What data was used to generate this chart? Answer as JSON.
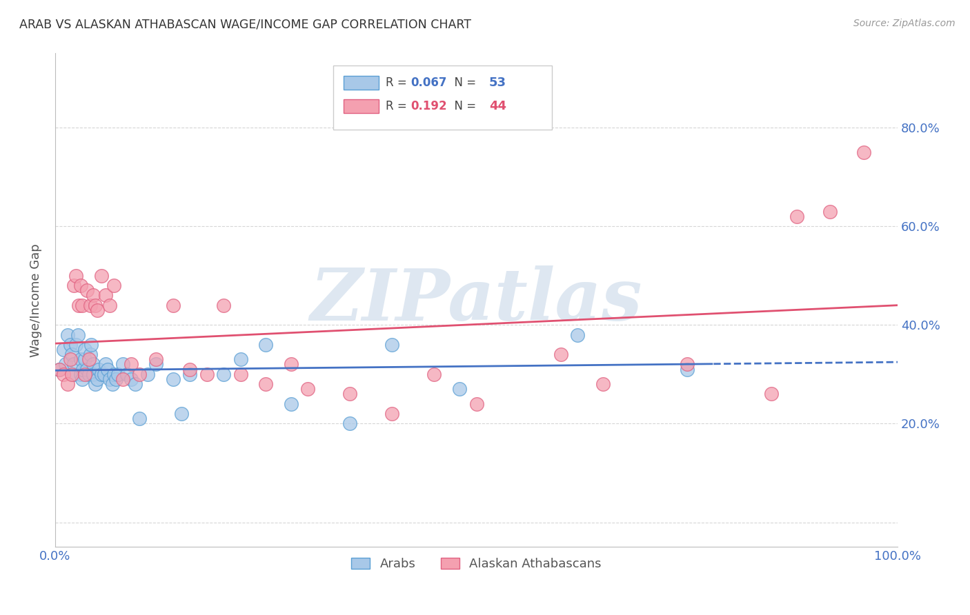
{
  "title": "ARAB VS ALASKAN ATHABASCAN WAGE/INCOME GAP CORRELATION CHART",
  "source": "Source: ZipAtlas.com",
  "ylabel": "Wage/Income Gap",
  "xlim": [
    0.0,
    1.0
  ],
  "ylim": [
    -0.05,
    0.95
  ],
  "yticks": [
    0.0,
    0.2,
    0.4,
    0.6,
    0.8
  ],
  "ytick_labels": [
    "",
    "20.0%",
    "40.0%",
    "60.0%",
    "80.0%"
  ],
  "xticks": [
    0.0,
    0.1,
    0.2,
    0.3,
    0.4,
    0.5,
    0.6,
    0.7,
    0.8,
    0.9,
    1.0
  ],
  "arab_color": "#a8c8e8",
  "athabascan_color": "#f4a0b0",
  "arab_edge_color": "#5a9fd4",
  "athabascan_edge_color": "#e06080",
  "trend_arab_color": "#4472c4",
  "trend_athabascan_color": "#e05070",
  "R_arab": 0.067,
  "N_arab": 53,
  "R_athabascan": 0.192,
  "N_athabascan": 44,
  "legend_label_arab": "Arabs",
  "legend_label_athabascan": "Alaskan Athabascans",
  "watermark": "ZIPatlas",
  "watermark_color": "#c8d8e8",
  "title_color": "#333333",
  "axis_label_color": "#555555",
  "tick_color": "#4472c4",
  "grid_color": "#cccccc",
  "background_color": "#ffffff",
  "arab_x": [
    0.005,
    0.01,
    0.012,
    0.015,
    0.018,
    0.02,
    0.022,
    0.022,
    0.025,
    0.027,
    0.03,
    0.03,
    0.032,
    0.033,
    0.035,
    0.035,
    0.038,
    0.04,
    0.042,
    0.043,
    0.045,
    0.045,
    0.048,
    0.05,
    0.052,
    0.055,
    0.058,
    0.06,
    0.062,
    0.065,
    0.068,
    0.07,
    0.072,
    0.075,
    0.08,
    0.085,
    0.09,
    0.095,
    0.1,
    0.11,
    0.12,
    0.14,
    0.15,
    0.16,
    0.2,
    0.22,
    0.25,
    0.28,
    0.35,
    0.4,
    0.48,
    0.62,
    0.75
  ],
  "arab_y": [
    0.31,
    0.35,
    0.32,
    0.38,
    0.36,
    0.34,
    0.3,
    0.32,
    0.36,
    0.38,
    0.3,
    0.33,
    0.29,
    0.31,
    0.33,
    0.35,
    0.31,
    0.3,
    0.34,
    0.36,
    0.32,
    0.3,
    0.28,
    0.29,
    0.31,
    0.3,
    0.3,
    0.32,
    0.31,
    0.29,
    0.28,
    0.3,
    0.29,
    0.3,
    0.32,
    0.3,
    0.29,
    0.28,
    0.21,
    0.3,
    0.32,
    0.29,
    0.22,
    0.3,
    0.3,
    0.33,
    0.36,
    0.24,
    0.2,
    0.36,
    0.27,
    0.38,
    0.31
  ],
  "athabascan_x": [
    0.005,
    0.01,
    0.015,
    0.018,
    0.02,
    0.022,
    0.025,
    0.028,
    0.03,
    0.032,
    0.035,
    0.038,
    0.04,
    0.042,
    0.045,
    0.048,
    0.05,
    0.055,
    0.06,
    0.065,
    0.07,
    0.08,
    0.09,
    0.1,
    0.12,
    0.14,
    0.16,
    0.18,
    0.2,
    0.22,
    0.25,
    0.28,
    0.3,
    0.35,
    0.4,
    0.45,
    0.5,
    0.6,
    0.65,
    0.75,
    0.85,
    0.88,
    0.92,
    0.96
  ],
  "athabascan_y": [
    0.31,
    0.3,
    0.28,
    0.33,
    0.3,
    0.48,
    0.5,
    0.44,
    0.48,
    0.44,
    0.3,
    0.47,
    0.33,
    0.44,
    0.46,
    0.44,
    0.43,
    0.5,
    0.46,
    0.44,
    0.48,
    0.29,
    0.32,
    0.3,
    0.33,
    0.44,
    0.31,
    0.3,
    0.44,
    0.3,
    0.28,
    0.32,
    0.27,
    0.26,
    0.22,
    0.3,
    0.24,
    0.34,
    0.28,
    0.32,
    0.26,
    0.62,
    0.63,
    0.75
  ],
  "arab_trend_solid_end": 0.78,
  "arab_intercept_approx": 0.295,
  "athabascan_intercept_approx": 0.27,
  "athabascan_slope_approx": 0.13
}
